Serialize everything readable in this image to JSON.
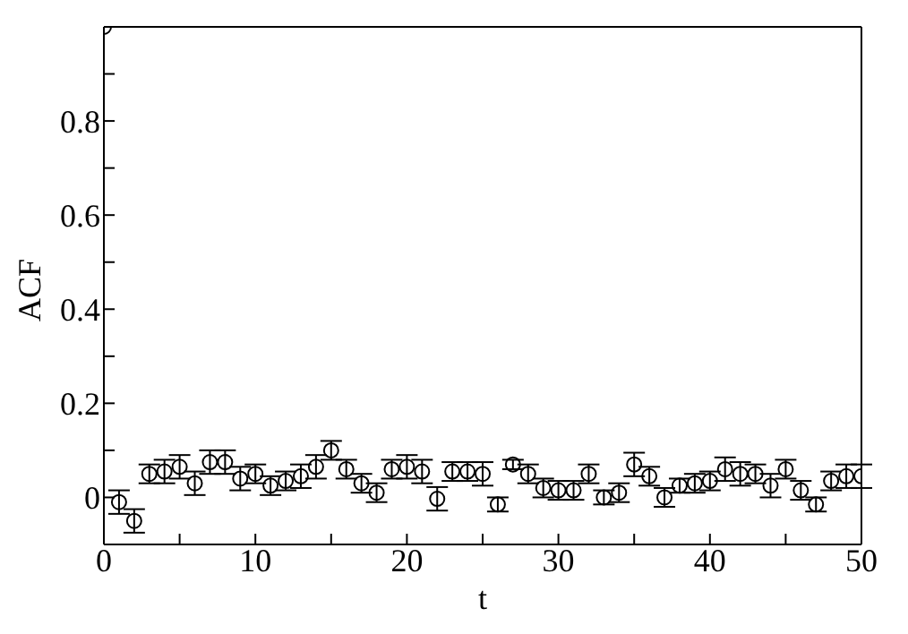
{
  "chart_data": {
    "type": "scatter",
    "xlabel": "t",
    "ylabel": "ACF",
    "x": [
      0,
      1,
      2,
      3,
      4,
      5,
      6,
      7,
      8,
      9,
      10,
      11,
      12,
      13,
      14,
      15,
      16,
      17,
      18,
      19,
      20,
      21,
      22,
      23,
      24,
      25,
      26,
      27,
      28,
      29,
      30,
      31,
      32,
      33,
      34,
      35,
      36,
      37,
      38,
      39,
      40,
      41,
      42,
      43,
      44,
      45,
      46,
      47,
      48,
      49,
      50
    ],
    "series": [
      {
        "color": "#000000",
        "values": [
          1,
          -0.01,
          -0.05,
          0.05,
          0.055,
          0.065,
          0.03,
          0.075,
          0.075,
          0.04,
          0.05,
          0.025,
          0.035,
          0.045,
          0.065,
          0.1,
          0.06,
          0.03,
          0.01,
          0.06,
          0.065,
          0.055,
          -0.003,
          0.055,
          0.055,
          0.05,
          -0.015,
          0.07,
          0.05,
          0.02,
          0.015,
          0.015,
          0.05,
          0.0,
          0.01,
          0.07,
          0.045,
          0.0,
          0.025,
          0.03,
          0.035,
          0.06,
          0.05,
          0.05,
          0.025,
          0.06,
          0.015,
          -0.015,
          0.035,
          0.045,
          0.045
        ],
        "errors": [
          null,
          0.025,
          0.025,
          0.02,
          0.025,
          0.025,
          0.025,
          0.025,
          0.025,
          0.025,
          0.02,
          0.02,
          0.02,
          0.025,
          0.025,
          0.02,
          0.02,
          0.02,
          0.02,
          0.02,
          0.025,
          0.025,
          0.025,
          0.02,
          0.02,
          0.025,
          0.015,
          0.01,
          0.02,
          0.02,
          0.02,
          0.02,
          0.02,
          0.015,
          0.02,
          0.025,
          0.02,
          0.02,
          0.015,
          0.02,
          0.02,
          0.025,
          0.025,
          0.02,
          0.025,
          0.02,
          0.02,
          0.015,
          0.02,
          0.025,
          0.025
        ]
      }
    ],
    "xlim": [
      0,
      50
    ],
    "ylim": [
      -0.1,
      1
    ],
    "xticks": [
      0,
      {
        "value": 5,
        "label": null
      },
      10,
      {
        "value": 15,
        "label": null
      },
      20,
      {
        "value": 25,
        "label": null
      },
      30,
      {
        "value": 35,
        "label": null
      },
      40,
      {
        "value": 45,
        "label": null
      },
      50
    ],
    "yticks": [
      {
        "value": -0.1,
        "label": null
      },
      0,
      {
        "value": 0.1,
        "label": null
      },
      0.2,
      {
        "value": 0.3,
        "label": null
      },
      0.4,
      {
        "value": 0.5,
        "label": null
      },
      0.6,
      {
        "value": 0.7,
        "label": null
      },
      0.8,
      {
        "value": 0.9,
        "label": null
      }
    ],
    "marker": "circle"
  }
}
